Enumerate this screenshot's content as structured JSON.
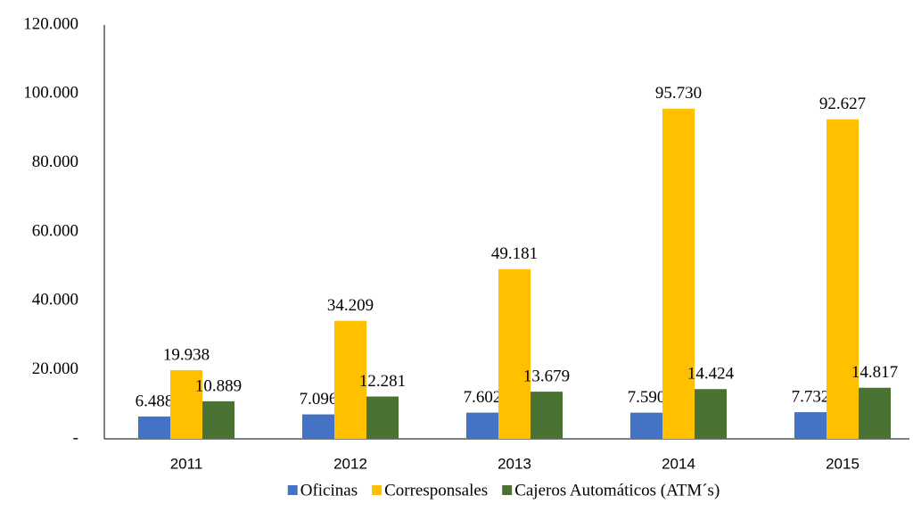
{
  "chart_data": {
    "type": "bar",
    "categories": [
      "2011",
      "2012",
      "2013",
      "2014",
      "2015"
    ],
    "series": [
      {
        "name": "Oficinas",
        "color": "#4472c4",
        "values": [
          6488,
          7096,
          7602,
          7590,
          7732
        ],
        "value_labels": [
          "6.488",
          "7.096",
          "7.602",
          "7.590",
          "7.732"
        ]
      },
      {
        "name": "Corresponsales",
        "color": "#ffc000",
        "values": [
          19938,
          34209,
          49181,
          95730,
          92627
        ],
        "value_labels": [
          "19.938",
          "34.209",
          "49.181",
          "95.730",
          "92.627"
        ]
      },
      {
        "name": "Cajeros Automáticos (ATM´s)",
        "color": "#4a7232",
        "values": [
          10889,
          12281,
          13679,
          14424,
          14817
        ],
        "value_labels": [
          "10.889",
          "12.281",
          "13.679",
          "14.424",
          "14.817"
        ]
      }
    ],
    "ylim": [
      0,
      120000
    ],
    "yticks": [
      {
        "value": 0,
        "label": "-"
      },
      {
        "value": 20000,
        "label": "20.000"
      },
      {
        "value": 40000,
        "label": "40.000"
      },
      {
        "value": 60000,
        "label": "60.000"
      },
      {
        "value": 80000,
        "label": "80.000"
      },
      {
        "value": 100000,
        "label": "100.000"
      },
      {
        "value": 120000,
        "label": "120.000"
      }
    ],
    "grid": false,
    "legend": "bottom"
  }
}
